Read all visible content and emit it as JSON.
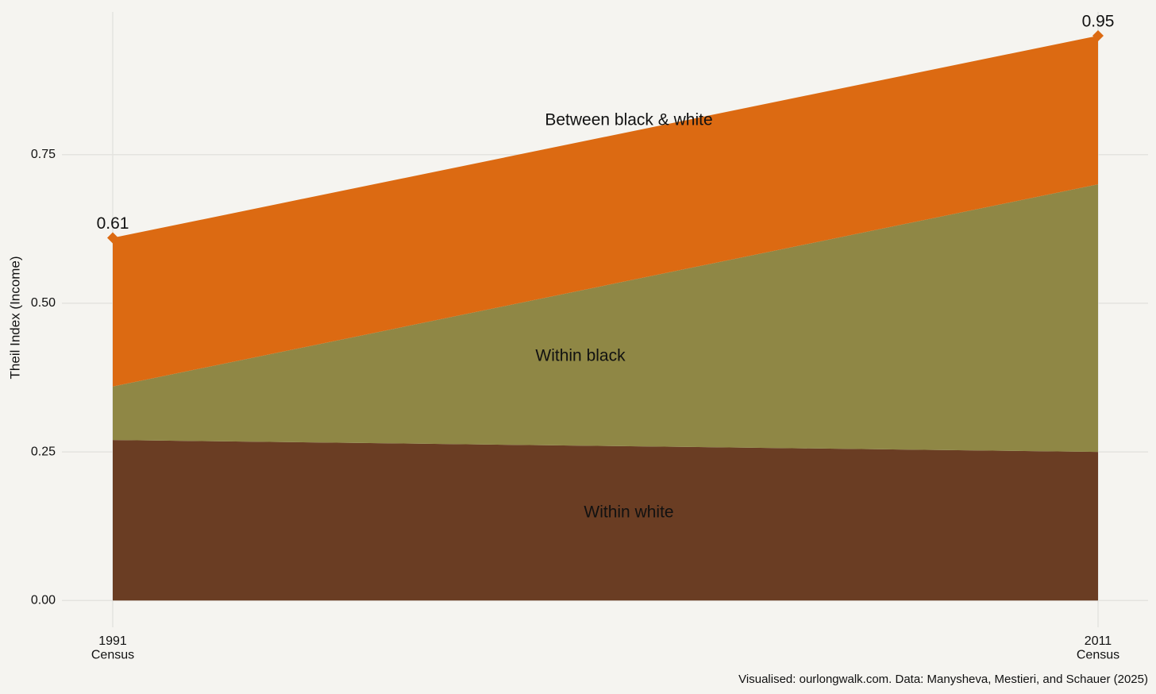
{
  "chart_data": {
    "type": "stacked_area",
    "y_label": "Theil Index (Income)",
    "caption": "Visualised: ourlongwalk.com. Data: Manysheva, Mestieri, and Schauer (2025)",
    "categories": [
      "1991\nCensus",
      "2011\nCensus"
    ],
    "series": [
      {
        "name": "Within white",
        "color": "#6a3d23",
        "values": [
          0.27,
          0.25
        ]
      },
      {
        "name": "Within black",
        "color": "#8f8745",
        "values": [
          0.09,
          0.45
        ]
      },
      {
        "name": "Between black & white",
        "color": "#dc6a12",
        "values": [
          0.25,
          0.25
        ]
      }
    ],
    "totals": {
      "values": [
        0.61,
        0.95
      ],
      "color": "#dc6a12"
    },
    "ylim": [
      -0.045,
      0.99
    ],
    "yticks": [
      {
        "value": 0,
        "label": "0.00"
      },
      0.25,
      {
        "value": 0.5,
        "label": "0.50"
      },
      0.75
    ],
    "grid": true
  }
}
